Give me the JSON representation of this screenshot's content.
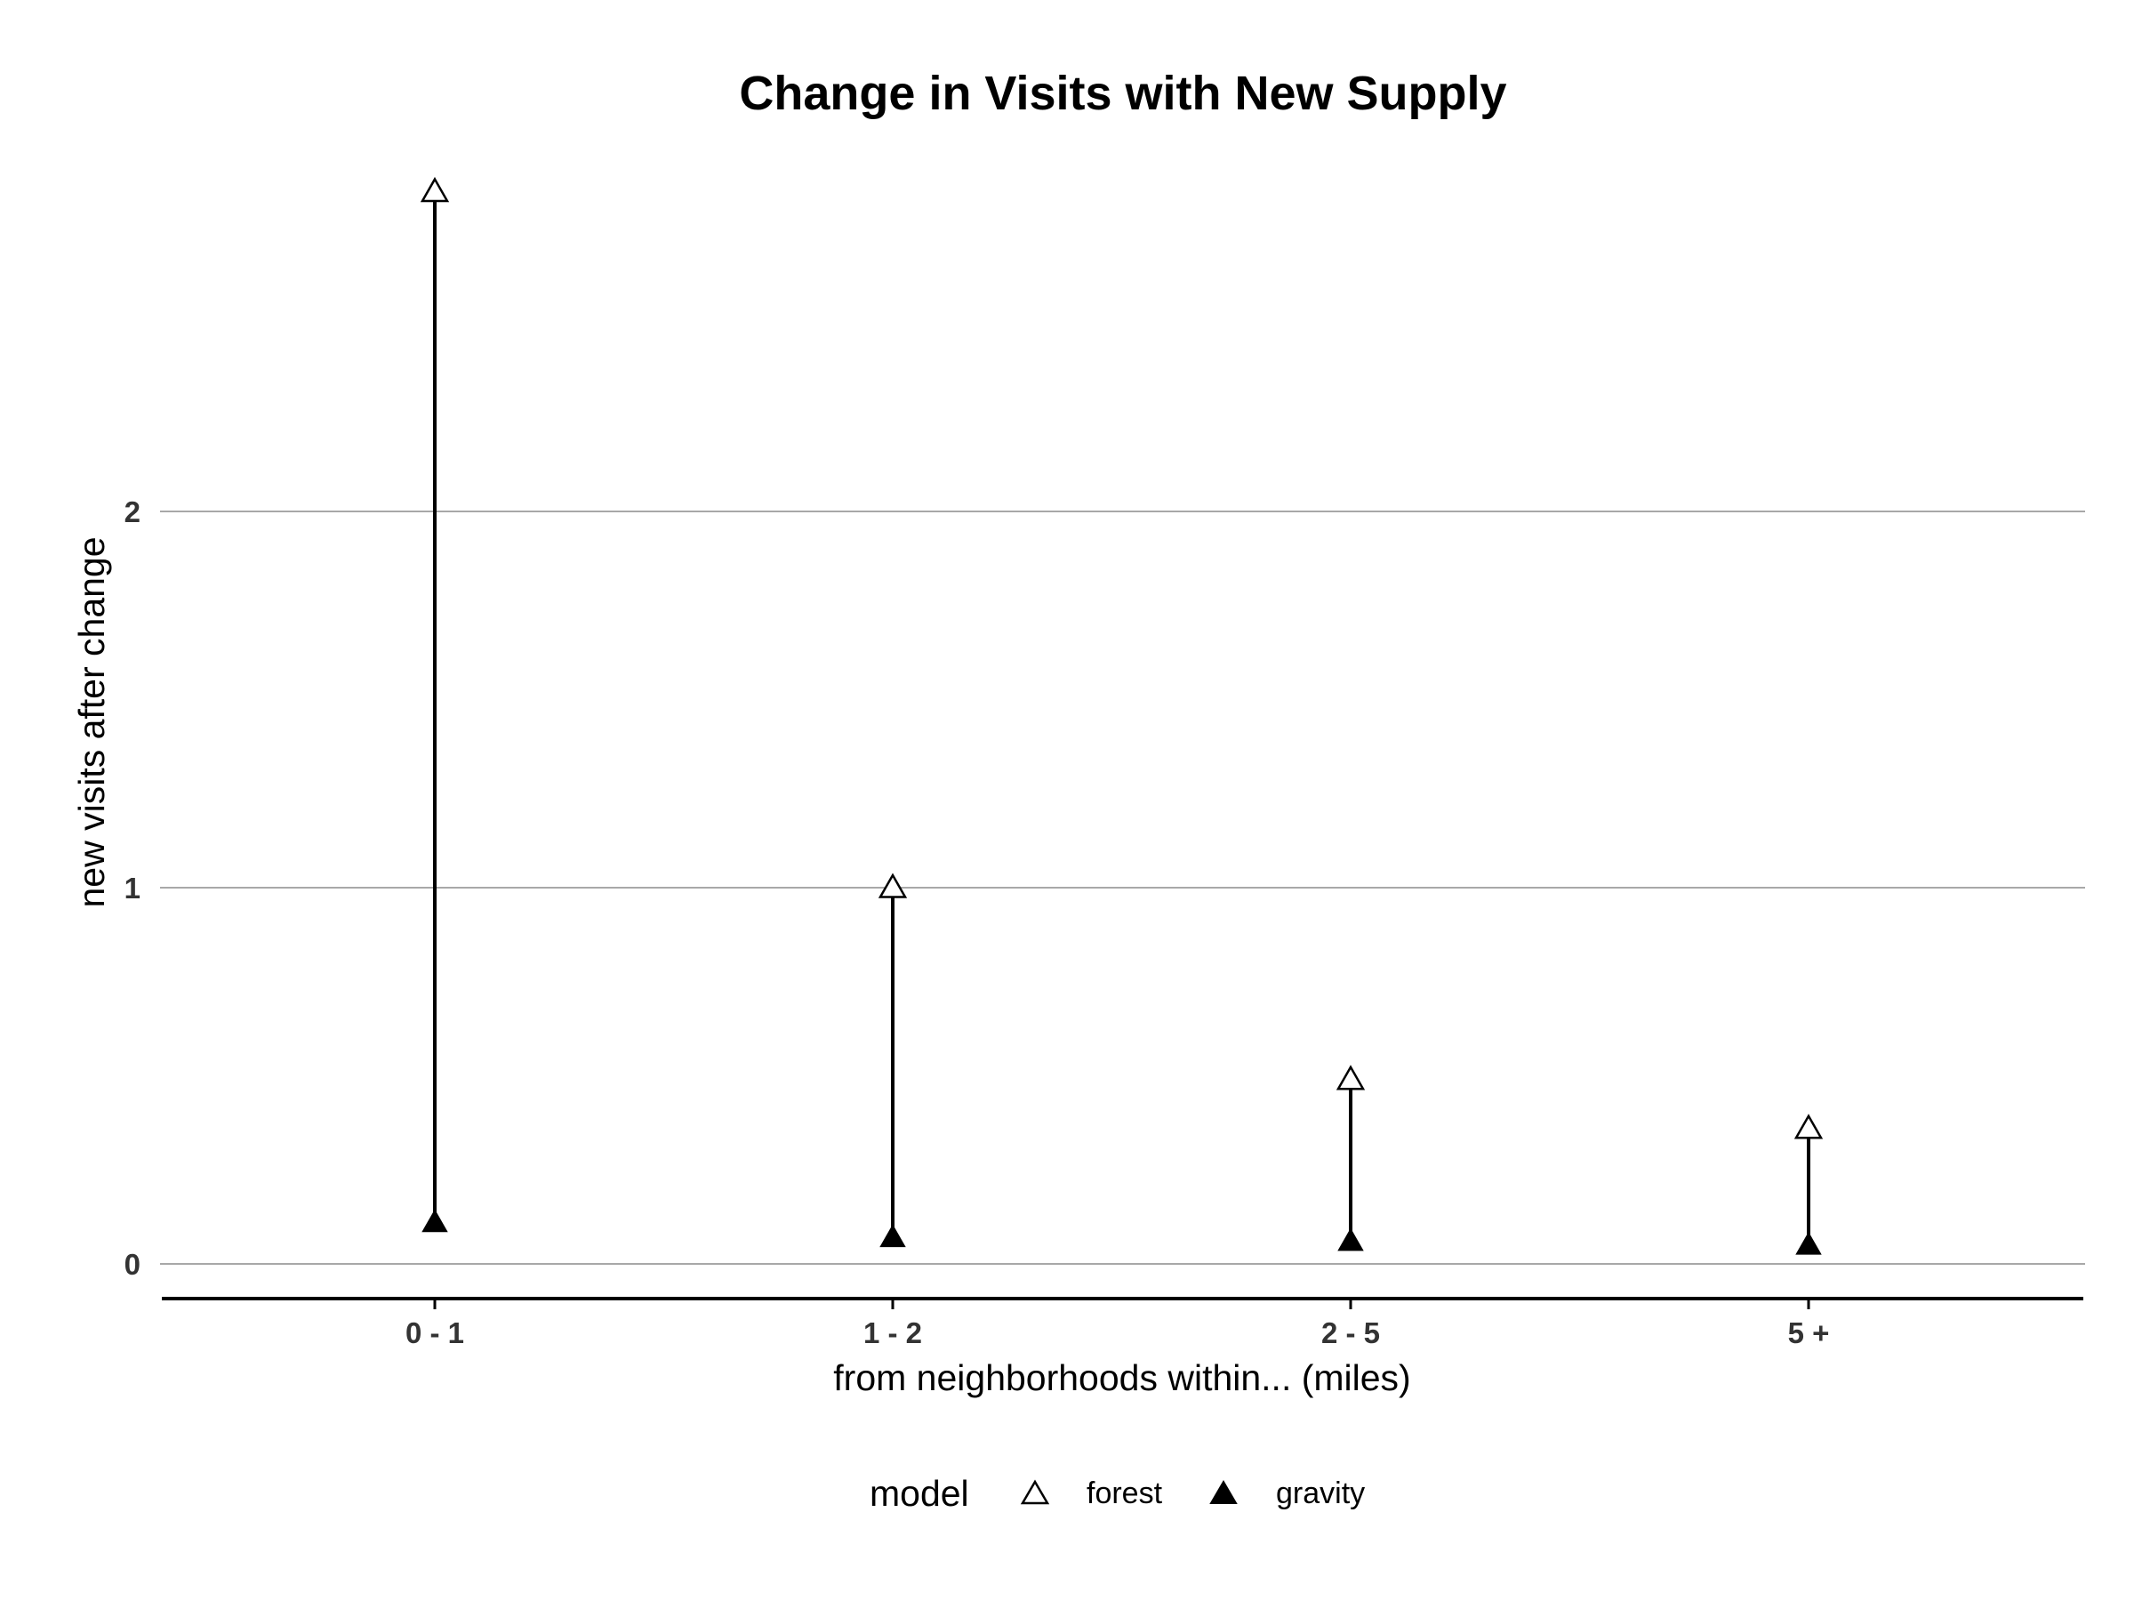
{
  "chart_data": {
    "type": "scatter",
    "subtype": "lollipop",
    "title": "Change in Visits with New Supply",
    "xlabel": "from neighborhoods within... (miles)",
    "ylabel": "new visits after change",
    "categories": [
      "0 - 1",
      "1 - 2",
      "2 - 5",
      "5 +"
    ],
    "series": [
      {
        "name": "forest",
        "marker": "open-triangle",
        "values": [
          2.85,
          1.0,
          0.49,
          0.36
        ]
      },
      {
        "name": "gravity",
        "marker": "filled-triangle",
        "values": [
          0.11,
          0.07,
          0.06,
          0.05
        ]
      }
    ],
    "ylim": [
      0,
      2.95
    ],
    "yticks": [
      0,
      1,
      2
    ],
    "ytick_labels": [
      "0",
      "1",
      "2"
    ],
    "grid": "horizontal major",
    "legend": {
      "title": "model",
      "position": "bottom"
    },
    "colors": {
      "line": "#000000",
      "grid": "#8c8c8c",
      "tick_text": "#333333"
    }
  }
}
